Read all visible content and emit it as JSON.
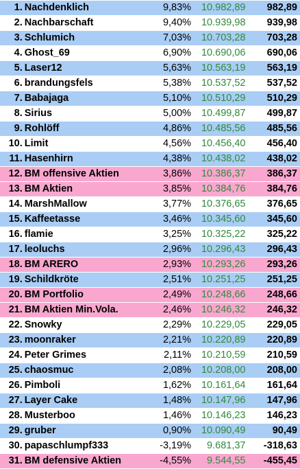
{
  "colors": {
    "blue": "#a9cdf4",
    "white": "#ffffff",
    "pink": "#f9a7cf",
    "value_text": "#2f8a3a"
  },
  "rows": [
    {
      "rank": "1.",
      "name": "Nachdenklich",
      "pct": "9,83%",
      "value": "10.982,89",
      "gain": "982,89",
      "color": "blue"
    },
    {
      "rank": "2.",
      "name": "Nachbarschaft",
      "pct": "9,40%",
      "value": "10.939,98",
      "gain": "939,98",
      "color": "white"
    },
    {
      "rank": "3.",
      "name": "Schlumich",
      "pct": "7,03%",
      "value": "10.703,28",
      "gain": "703,28",
      "color": "blue"
    },
    {
      "rank": "4.",
      "name": "Ghost_69",
      "pct": "6,90%",
      "value": "10.690,06",
      "gain": "690,06",
      "color": "white"
    },
    {
      "rank": "5.",
      "name": "Laser12",
      "pct": "5,63%",
      "value": "10.563,19",
      "gain": "563,19",
      "color": "blue"
    },
    {
      "rank": "6.",
      "name": "brandungsfels",
      "pct": "5,38%",
      "value": "10.537,52",
      "gain": "537,52",
      "color": "white"
    },
    {
      "rank": "7.",
      "name": "Babajaga",
      "pct": "5,10%",
      "value": "10.510,29",
      "gain": "510,29",
      "color": "blue"
    },
    {
      "rank": "8.",
      "name": "Sirius",
      "pct": "5,00%",
      "value": "10.499,87",
      "gain": "499,87",
      "color": "white"
    },
    {
      "rank": "9.",
      "name": "Rohlöff",
      "pct": "4,86%",
      "value": "10.485,56",
      "gain": "485,56",
      "color": "blue"
    },
    {
      "rank": "10.",
      "name": "Limit",
      "pct": "4,56%",
      "value": "10.456,40",
      "gain": "456,40",
      "color": "white"
    },
    {
      "rank": "11.",
      "name": "Hasenhirn",
      "pct": "4,38%",
      "value": "10.438,02",
      "gain": "438,02",
      "color": "blue"
    },
    {
      "rank": "12.",
      "name": "BM offensive Aktien",
      "pct": "3,86%",
      "value": "10.386,37",
      "gain": "386,37",
      "color": "pink"
    },
    {
      "rank": "13.",
      "name": "BM Aktien",
      "pct": "3,85%",
      "value": "10.384,76",
      "gain": "384,76",
      "color": "pink"
    },
    {
      "rank": "14.",
      "name": "MarshMallow",
      "pct": "3,77%",
      "value": "10.376,65",
      "gain": "376,65",
      "color": "white"
    },
    {
      "rank": "15.",
      "name": "Kaffeetasse",
      "pct": "3,46%",
      "value": "10.345,60",
      "gain": "345,60",
      "color": "blue"
    },
    {
      "rank": "16.",
      "name": "flamie",
      "pct": "3,25%",
      "value": "10.325,22",
      "gain": "325,22",
      "color": "white"
    },
    {
      "rank": "17.",
      "name": "leoluchs",
      "pct": "2,96%",
      "value": "10.296,43",
      "gain": "296,43",
      "color": "blue"
    },
    {
      "rank": "18.",
      "name": "BM ARERO",
      "pct": "2,93%",
      "value": "10.293,26",
      "gain": "293,26",
      "color": "pink"
    },
    {
      "rank": "19.",
      "name": "Schildkröte",
      "pct": "2,51%",
      "value": "10.251,25",
      "gain": "251,25",
      "color": "blue"
    },
    {
      "rank": "20.",
      "name": "BM Portfolio",
      "pct": "2,49%",
      "value": "10.248,66",
      "gain": "248,66",
      "color": "pink"
    },
    {
      "rank": "21.",
      "name": "BM Aktien Min.Vola.",
      "pct": "2,46%",
      "value": "10.246,32",
      "gain": "246,32",
      "color": "pink"
    },
    {
      "rank": "22.",
      "name": "Snowky",
      "pct": "2,29%",
      "value": "10.229,05",
      "gain": "229,05",
      "color": "white"
    },
    {
      "rank": "23.",
      "name": "moonraker",
      "pct": "2,21%",
      "value": "10.220,89",
      "gain": "220,89",
      "color": "blue"
    },
    {
      "rank": "24.",
      "name": "Peter Grimes",
      "pct": "2,11%",
      "value": "10.210,59",
      "gain": "210,59",
      "color": "white"
    },
    {
      "rank": "25.",
      "name": "chaosmuc",
      "pct": "2,08%",
      "value": "10.208,00",
      "gain": "208,00",
      "color": "blue"
    },
    {
      "rank": "26.",
      "name": "Pimboli",
      "pct": "1,62%",
      "value": "10.161,64",
      "gain": "161,64",
      "color": "white"
    },
    {
      "rank": "27.",
      "name": "Layer Cake",
      "pct": "1,48%",
      "value": "10.147,96",
      "gain": "147,96",
      "color": "blue"
    },
    {
      "rank": "28.",
      "name": "Musterboo",
      "pct": "1,46%",
      "value": "10.146,23",
      "gain": "146,23",
      "color": "white"
    },
    {
      "rank": "29.",
      "name": "gruber",
      "pct": "0,90%",
      "value": "10.090,49",
      "gain": "90,49",
      "color": "blue"
    },
    {
      "rank": "30.",
      "name": "papaschlumpf333",
      "pct": "-3,19%",
      "value": "9.681,37",
      "gain": "-318,63",
      "color": "white"
    },
    {
      "rank": "31.",
      "name": "BM defensive Aktien",
      "pct": "-4,55%",
      "value": "9.544,55",
      "gain": "-455,45",
      "color": "pink"
    }
  ]
}
